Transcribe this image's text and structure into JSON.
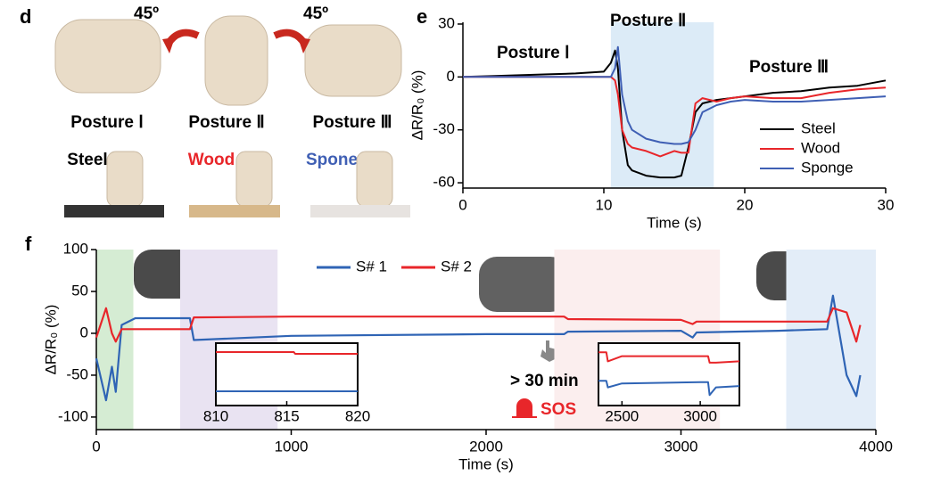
{
  "panel_d": {
    "label": "d",
    "angles": [
      "45º",
      "45º"
    ],
    "postures": [
      "Posture Ⅰ",
      "Posture Ⅱ",
      "Posture Ⅲ"
    ],
    "materials": [
      "Steel",
      "Wood",
      "Spone"
    ]
  },
  "chart_data": [
    {
      "type": "line",
      "panel_label": "e",
      "x_label": "Time (s)",
      "y_label": "ΔR/R₀ (%)",
      "annotations": [
        "Posture Ⅰ",
        "Posture Ⅱ",
        "Posture Ⅲ"
      ],
      "shade": {
        "range": [
          10.5,
          17.8
        ],
        "color": "#dcebf7"
      },
      "xlim": [
        0,
        30
      ],
      "xticks": [
        0,
        10,
        20,
        30
      ],
      "ylim": [
        -63,
        31
      ],
      "yticks": [
        30,
        0,
        -30,
        -60
      ],
      "x": [
        0,
        2,
        4,
        6,
        8,
        10,
        10.5,
        10.8,
        11,
        11.3,
        11.7,
        12,
        13,
        14,
        15,
        15.5,
        16,
        16.5,
        17,
        18,
        19,
        20,
        22,
        24,
        26,
        28,
        30
      ],
      "series": [
        {
          "name": "Steel",
          "color": "#000000",
          "values": [
            0,
            0.5,
            1,
            1.5,
            2,
            3,
            8,
            15,
            5,
            -30,
            -50,
            -53,
            -56,
            -57,
            -57,
            -56,
            -40,
            -20,
            -15,
            -13,
            -12,
            -11,
            -9,
            -8,
            -6,
            -5,
            -2
          ]
        },
        {
          "name": "Wood",
          "color": "#e8262a",
          "values": [
            0,
            0,
            0,
            0,
            0,
            0,
            0,
            -2,
            -10,
            -30,
            -38,
            -40,
            -42,
            -45,
            -42,
            -43,
            -43,
            -15,
            -12,
            -14,
            -12,
            -11,
            -12,
            -12,
            -9,
            -7,
            -6
          ]
        },
        {
          "name": "Sponge",
          "color": "#3f5fb4",
          "values": [
            0,
            0,
            0,
            0,
            0,
            0,
            0,
            5,
            17,
            -10,
            -25,
            -30,
            -35,
            -37,
            -38,
            -38,
            -37,
            -30,
            -20,
            -16,
            -14,
            -13,
            -14,
            -14,
            -13,
            -12,
            -11
          ]
        }
      ]
    },
    {
      "type": "line",
      "panel_label": "f",
      "x_label": "Time (s)",
      "y_label": "ΔR/R₀ (%)",
      "annotations": [
        "> 30 min",
        "SOS"
      ],
      "shades": [
        {
          "range": [
            0,
            190
          ],
          "color": "#d5ecd3"
        },
        {
          "range": [
            430,
            930
          ],
          "color": "#e9e3f2"
        },
        {
          "range": [
            2350,
            3200
          ],
          "color": "#fbeeee"
        },
        {
          "range": [
            3540,
            4000
          ],
          "color": "#e3edf8"
        }
      ],
      "xlim": [
        0,
        4000
      ],
      "xticks": [
        0,
        1000,
        2000,
        3000,
        4000
      ],
      "ylim": [
        -115,
        100
      ],
      "yticks": [
        100,
        50,
        0,
        -50,
        -100
      ],
      "x": [
        0,
        50,
        80,
        100,
        130,
        200,
        480,
        500,
        1000,
        2000,
        2400,
        2420,
        3000,
        3060,
        3080,
        3500,
        3750,
        3780,
        3850,
        3900,
        3920
      ],
      "series": [
        {
          "name": "S# 1",
          "color": "#2f64b5",
          "values": [
            -30,
            -80,
            -40,
            -70,
            10,
            18,
            18,
            -8,
            -3,
            -1,
            -1,
            2,
            3,
            -5,
            1,
            3,
            5,
            45,
            -50,
            -75,
            -50
          ]
        },
        {
          "name": "S# 2",
          "color": "#e8262a",
          "values": [
            -5,
            30,
            0,
            -10,
            5,
            5,
            5,
            19,
            20,
            20,
            20,
            17,
            16,
            11,
            14,
            14,
            14,
            30,
            25,
            -10,
            10
          ]
        }
      ],
      "insets": [
        {
          "xlim": [
            810,
            820
          ],
          "xticks": [
            810,
            815,
            820
          ],
          "ylim": [
            -10,
            25
          ],
          "x": [
            810,
            815.5,
            815.6,
            820
          ],
          "series": [
            {
              "values": [
                -2,
                -2,
                -2,
                -2
              ]
            },
            {
              "values": [
                20,
                20,
                19,
                19
              ]
            }
          ]
        },
        {
          "xlim": [
            2350,
            3250
          ],
          "xticks": [
            2500,
            3000
          ],
          "ylim": [
            -20,
            28
          ],
          "x": [
            2350,
            2400,
            2410,
            2500,
            3000,
            3050,
            3060,
            3100,
            3250
          ],
          "series": [
            {
              "values": [
                -1,
                -1,
                -6,
                -3,
                -2,
                -2,
                -12,
                -6,
                -5
              ]
            },
            {
              "values": [
                21,
                21,
                14,
                18,
                18,
                18,
                13,
                13,
                14
              ]
            }
          ]
        }
      ]
    }
  ]
}
